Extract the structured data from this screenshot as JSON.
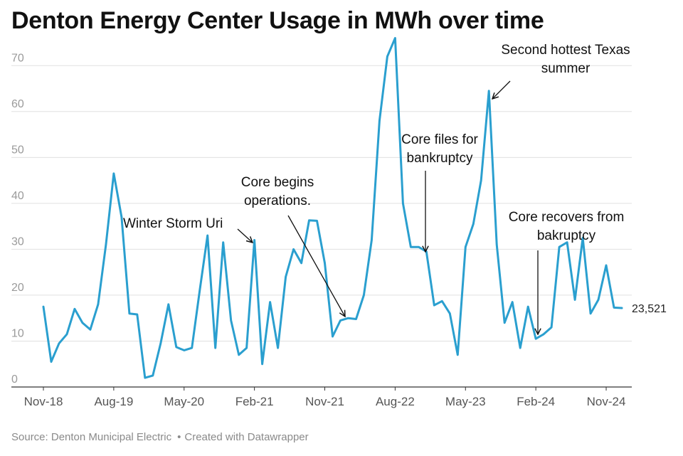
{
  "title": "Denton Energy Center Usage in MWh over time",
  "footer": {
    "source": "Source: Denton Municipal Electric",
    "separator": "•",
    "credit": "Created with Datawrapper"
  },
  "colors": {
    "line": "#2a9fcf",
    "grid": "#e0e0e0",
    "axis": "#333333",
    "annotation": "#111111"
  },
  "chart_data": {
    "type": "line",
    "title": "Denton Energy Center Usage in MWh over time",
    "xlabel": "",
    "ylabel": "",
    "ylim": [
      0,
      75
    ],
    "yticks": [
      0,
      10,
      20,
      30,
      40,
      50,
      60,
      70
    ],
    "grid": "horizontal",
    "x_tick_labels": [
      "Nov-18",
      "Aug-19",
      "May-20",
      "Feb-21",
      "Nov-21",
      "Aug-22",
      "May-23",
      "Feb-24",
      "Nov-24"
    ],
    "x_tick_positions": [
      "2018-11",
      "2019-08",
      "2020-05",
      "2021-02",
      "2021-11",
      "2022-08",
      "2023-05",
      "2024-02",
      "2024-11"
    ],
    "series": [
      {
        "x": [
          "2018-11",
          "2018-12",
          "2019-01",
          "2019-02",
          "2019-03",
          "2019-04",
          "2019-05",
          "2019-06",
          "2019-07",
          "2019-08",
          "2019-09",
          "2019-10",
          "2019-11",
          "2019-12",
          "2020-01",
          "2020-02",
          "2020-03",
          "2020-04",
          "2020-05",
          "2020-06",
          "2020-07",
          "2020-08",
          "2020-09",
          "2020-10",
          "2020-11",
          "2020-12",
          "2021-01",
          "2021-02",
          "2021-03",
          "2021-04",
          "2021-05",
          "2021-06",
          "2021-07",
          "2021-08",
          "2021-09",
          "2021-10",
          "2021-11",
          "2021-12",
          "2022-01",
          "2022-02",
          "2022-03",
          "2022-04",
          "2022-05",
          "2022-06",
          "2022-07",
          "2022-08",
          "2022-09",
          "2022-10",
          "2022-11",
          "2022-12",
          "2023-01",
          "2023-02",
          "2023-03",
          "2023-04",
          "2023-05",
          "2023-06",
          "2023-07",
          "2023-08",
          "2023-09",
          "2023-10",
          "2023-11",
          "2023-12",
          "2024-01",
          "2024-02",
          "2024-03",
          "2024-04",
          "2024-05",
          "2024-06",
          "2024-07",
          "2024-08",
          "2024-09",
          "2024-10",
          "2024-11",
          "2024-12",
          "2025-01"
        ],
        "values": [
          17.5,
          5.5,
          9.5,
          11.5,
          17,
          14,
          12.5,
          18,
          31,
          46.5,
          37,
          16,
          15.8,
          2,
          2.5,
          9.5,
          18,
          8.7,
          8,
          8.5,
          21,
          33,
          8.5,
          31.5,
          14.5,
          7,
          8.5,
          32,
          5,
          18.5,
          8.5,
          24,
          30,
          27,
          36.3,
          36.2,
          27,
          11,
          14.5,
          15,
          14.8,
          20,
          32,
          58,
          72,
          76,
          40,
          30.5,
          30.5,
          29.5,
          17.8,
          18.7,
          16,
          7,
          30.5,
          35.5,
          45,
          64.5,
          31,
          14,
          18.5,
          8.5,
          17.5,
          10.5,
          11.5,
          13,
          30.5,
          31.5,
          19,
          32.5,
          16,
          19,
          26.5,
          17.3,
          17.2
        ]
      }
    ],
    "end_label": "23,521",
    "annotations": [
      {
        "lines": [
          "Winter Storm Uri"
        ]
      },
      {
        "lines": [
          "Core begins",
          "operations."
        ]
      },
      {
        "lines": [
          "Core files for",
          "bankruptcy"
        ]
      },
      {
        "lines": [
          "Second hottest Texas",
          "summer"
        ]
      },
      {
        "lines": [
          "Core recovers from",
          "bakruptcy"
        ]
      }
    ]
  }
}
